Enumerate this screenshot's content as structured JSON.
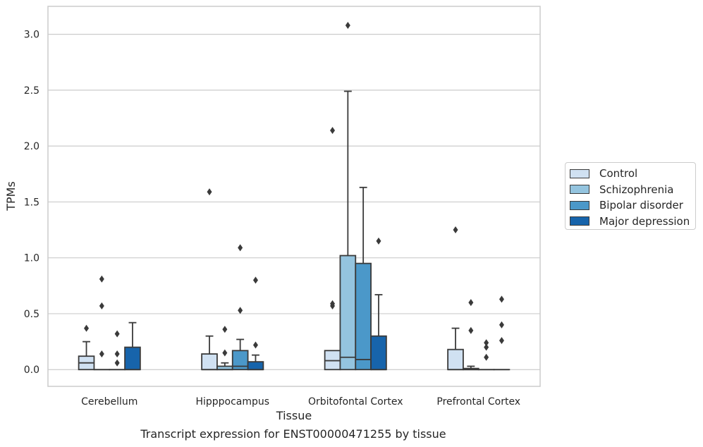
{
  "caption": "Transcript expression for ENST00000471255 by tissue",
  "chart_data": {
    "type": "box",
    "title": "",
    "xlabel": "Tissue",
    "ylabel": "TPMs",
    "ylim": [
      -0.15,
      3.25
    ],
    "yticks": [
      0.0,
      0.5,
      1.0,
      1.5,
      2.0,
      2.5,
      3.0
    ],
    "grid": "horizontal",
    "legend_position": "right",
    "categories": [
      "Cerebellum",
      "Hipppocampus",
      "Orbitofontal Cortex",
      "Prefrontal Cortex"
    ],
    "series": [
      {
        "name": "Control",
        "color": "#d0e1f2",
        "boxes": [
          {
            "whislo": 0.0,
            "q1": 0.0,
            "med": 0.06,
            "q3": 0.12,
            "whishi": 0.25,
            "fliers": [
              0.37
            ]
          },
          {
            "whislo": 0.0,
            "q1": 0.0,
            "med": 0.0,
            "q3": 0.14,
            "whishi": 0.3,
            "fliers": [
              1.59
            ]
          },
          {
            "whislo": 0.0,
            "q1": 0.0,
            "med": 0.08,
            "q3": 0.17,
            "whishi": 0.17,
            "fliers": [
              0.57,
              0.59,
              2.14
            ]
          },
          {
            "whislo": 0.0,
            "q1": 0.0,
            "med": 0.0,
            "q3": 0.18,
            "whishi": 0.37,
            "fliers": [
              1.25
            ]
          }
        ]
      },
      {
        "name": "Schizophrenia",
        "color": "#94c4df",
        "boxes": [
          {
            "whislo": 0.0,
            "q1": 0.0,
            "med": 0.0,
            "q3": 0.0,
            "whishi": 0.0,
            "fliers": [
              0.14,
              0.57,
              0.81
            ]
          },
          {
            "whislo": 0.0,
            "q1": 0.0,
            "med": 0.0,
            "q3": 0.03,
            "whishi": 0.06,
            "fliers": [
              0.15,
              0.36
            ]
          },
          {
            "whislo": 0.0,
            "q1": 0.0,
            "med": 0.11,
            "q3": 1.02,
            "whishi": 2.49,
            "fliers": [
              3.08
            ]
          },
          {
            "whislo": 0.0,
            "q1": 0.0,
            "med": 0.0,
            "q3": 0.01,
            "whishi": 0.03,
            "fliers": [
              0.35,
              0.6
            ]
          }
        ]
      },
      {
        "name": "Bipolar disorder",
        "color": "#4b98c9",
        "boxes": [
          {
            "whislo": 0.0,
            "q1": 0.0,
            "med": 0.0,
            "q3": 0.0,
            "whishi": 0.0,
            "fliers": [
              0.06,
              0.14,
              0.32
            ]
          },
          {
            "whislo": 0.0,
            "q1": 0.0,
            "med": 0.03,
            "q3": 0.17,
            "whishi": 0.27,
            "fliers": [
              0.53,
              1.09
            ]
          },
          {
            "whislo": 0.0,
            "q1": 0.0,
            "med": 0.09,
            "q3": 0.95,
            "whishi": 1.63,
            "fliers": []
          },
          {
            "whislo": 0.0,
            "q1": 0.0,
            "med": 0.0,
            "q3": 0.0,
            "whishi": 0.0,
            "fliers": [
              0.11,
              0.2,
              0.24
            ]
          }
        ]
      },
      {
        "name": "Major depression",
        "color": "#1764ab",
        "boxes": [
          {
            "whislo": 0.0,
            "q1": 0.0,
            "med": 0.0,
            "q3": 0.2,
            "whishi": 0.42,
            "fliers": []
          },
          {
            "whislo": 0.0,
            "q1": 0.0,
            "med": 0.0,
            "q3": 0.07,
            "whishi": 0.13,
            "fliers": [
              0.22,
              0.8
            ]
          },
          {
            "whislo": 0.0,
            "q1": 0.0,
            "med": 0.0,
            "q3": 0.3,
            "whishi": 0.67,
            "fliers": [
              1.15
            ]
          },
          {
            "whislo": 0.0,
            "q1": 0.0,
            "med": 0.0,
            "q3": 0.0,
            "whishi": 0.0,
            "fliers": [
              0.26,
              0.4,
              0.63
            ]
          }
        ]
      }
    ]
  }
}
